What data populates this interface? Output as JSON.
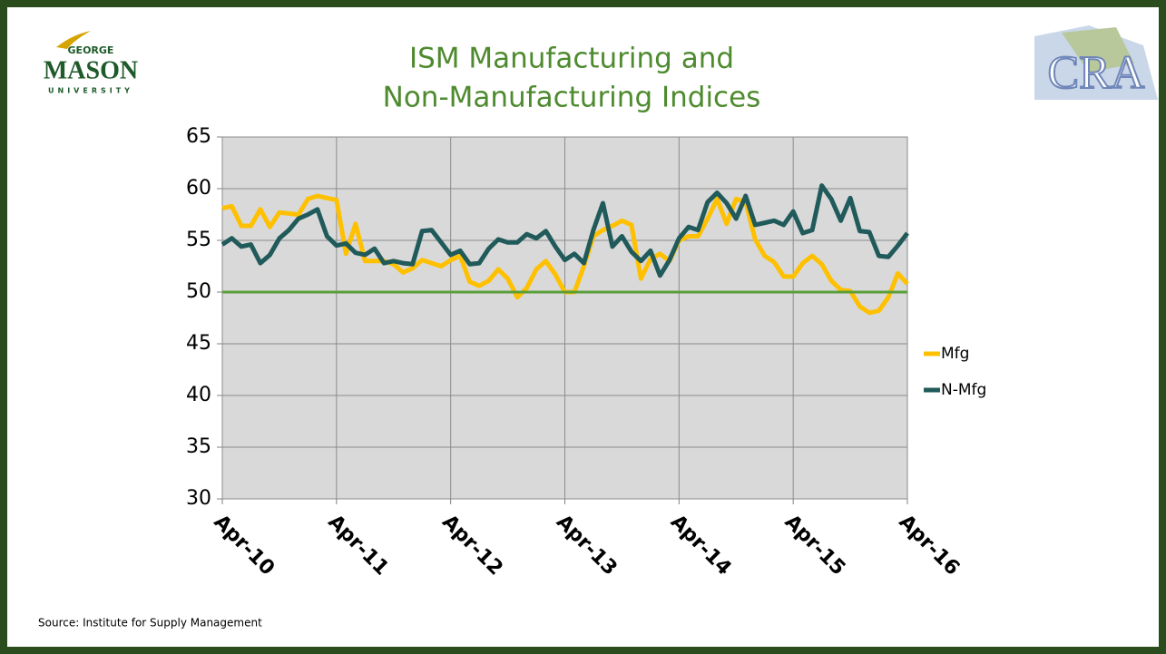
{
  "logos": {
    "left": [
      "GEORGE",
      "MASON",
      "UNIVERSITY"
    ],
    "right": "CRA"
  },
  "chart_data": {
    "type": "line",
    "title": [
      "ISM Manufacturing and",
      "Non-Manufacturing Indices"
    ],
    "source": "Source: Institute for Supply Management",
    "categories": [
      "Apr-10",
      null,
      null,
      null,
      null,
      null,
      null,
      null,
      null,
      null,
      null,
      null,
      "Apr-11",
      null,
      null,
      null,
      null,
      null,
      null,
      null,
      null,
      null,
      null,
      null,
      "Apr-12",
      null,
      null,
      null,
      null,
      null,
      null,
      null,
      null,
      null,
      null,
      null,
      "Apr-13",
      null,
      null,
      null,
      null,
      null,
      null,
      null,
      null,
      null,
      null,
      null,
      "Apr-14",
      null,
      null,
      null,
      null,
      null,
      null,
      null,
      null,
      null,
      null,
      null,
      "Apr-15",
      null,
      null,
      null,
      null,
      null,
      null,
      null,
      null,
      null,
      null,
      null,
      "Apr-16"
    ],
    "series": [
      {
        "name": "Mfg",
        "color": "#ffc000",
        "values": [
          58.1,
          58.3,
          56.4,
          56.4,
          58.0,
          56.3,
          57.7,
          57.6,
          57.5,
          59.0,
          59.3,
          59.1,
          58.9,
          53.7,
          56.6,
          53.0,
          53.0,
          53.0,
          52.7,
          51.9,
          52.3,
          53.1,
          52.8,
          52.5,
          53.1,
          53.5,
          51.0,
          50.6,
          51.1,
          52.2,
          51.3,
          49.5,
          50.4,
          52.2,
          53.0,
          51.7,
          50.0,
          50.0,
          52.5,
          55.4,
          56.0,
          56.4,
          56.9,
          56.5,
          51.3,
          53.2,
          53.7,
          53.0,
          55.0,
          55.4,
          55.4,
          57.1,
          59.0,
          56.6,
          59.0,
          58.7,
          55.1,
          53.5,
          52.9,
          51.5,
          51.5,
          52.8,
          53.5,
          52.7,
          51.1,
          50.2,
          50.1,
          48.6,
          48.0,
          48.2,
          49.5,
          51.8,
          50.8
        ]
      },
      {
        "name": "N-Mfg",
        "color": "#215a5a",
        "values": [
          54.6,
          55.2,
          54.4,
          54.6,
          52.8,
          53.6,
          55.2,
          56.0,
          57.1,
          57.5,
          58.0,
          55.4,
          54.5,
          54.7,
          53.8,
          53.6,
          54.2,
          52.8,
          53.0,
          52.8,
          52.7,
          55.9,
          56.0,
          54.8,
          53.6,
          54.0,
          52.7,
          52.8,
          54.2,
          55.1,
          54.8,
          54.8,
          55.6,
          55.2,
          55.9,
          54.4,
          53.1,
          53.7,
          52.8,
          56.0,
          58.6,
          54.4,
          55.4,
          53.9,
          53.0,
          54.0,
          51.6,
          53.1,
          55.2,
          56.3,
          56.0,
          58.7,
          59.6,
          58.6,
          57.1,
          59.3,
          56.5,
          56.7,
          56.9,
          56.5,
          57.8,
          55.7,
          56.0,
          60.3,
          59.0,
          56.9,
          59.1,
          55.9,
          55.8,
          53.5,
          53.4,
          54.5,
          55.7
        ]
      }
    ],
    "reference_line": {
      "value": 50,
      "color": "#5a9e3a"
    },
    "ylim": [
      30,
      65
    ],
    "yticks": [
      30,
      35,
      40,
      45,
      50,
      55,
      60,
      65
    ],
    "grid": true,
    "legend": "right"
  }
}
